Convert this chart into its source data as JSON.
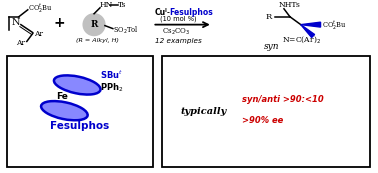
{
  "bg_color": "#ffffff",
  "black": "#000000",
  "blue": "#0000cc",
  "red": "#cc0000",
  "gray_fill": "#c0c0c0",
  "figsize": [
    3.78,
    1.73
  ],
  "dpi": 100,
  "xlim": [
    0,
    378
  ],
  "ylim": [
    0,
    173
  ]
}
